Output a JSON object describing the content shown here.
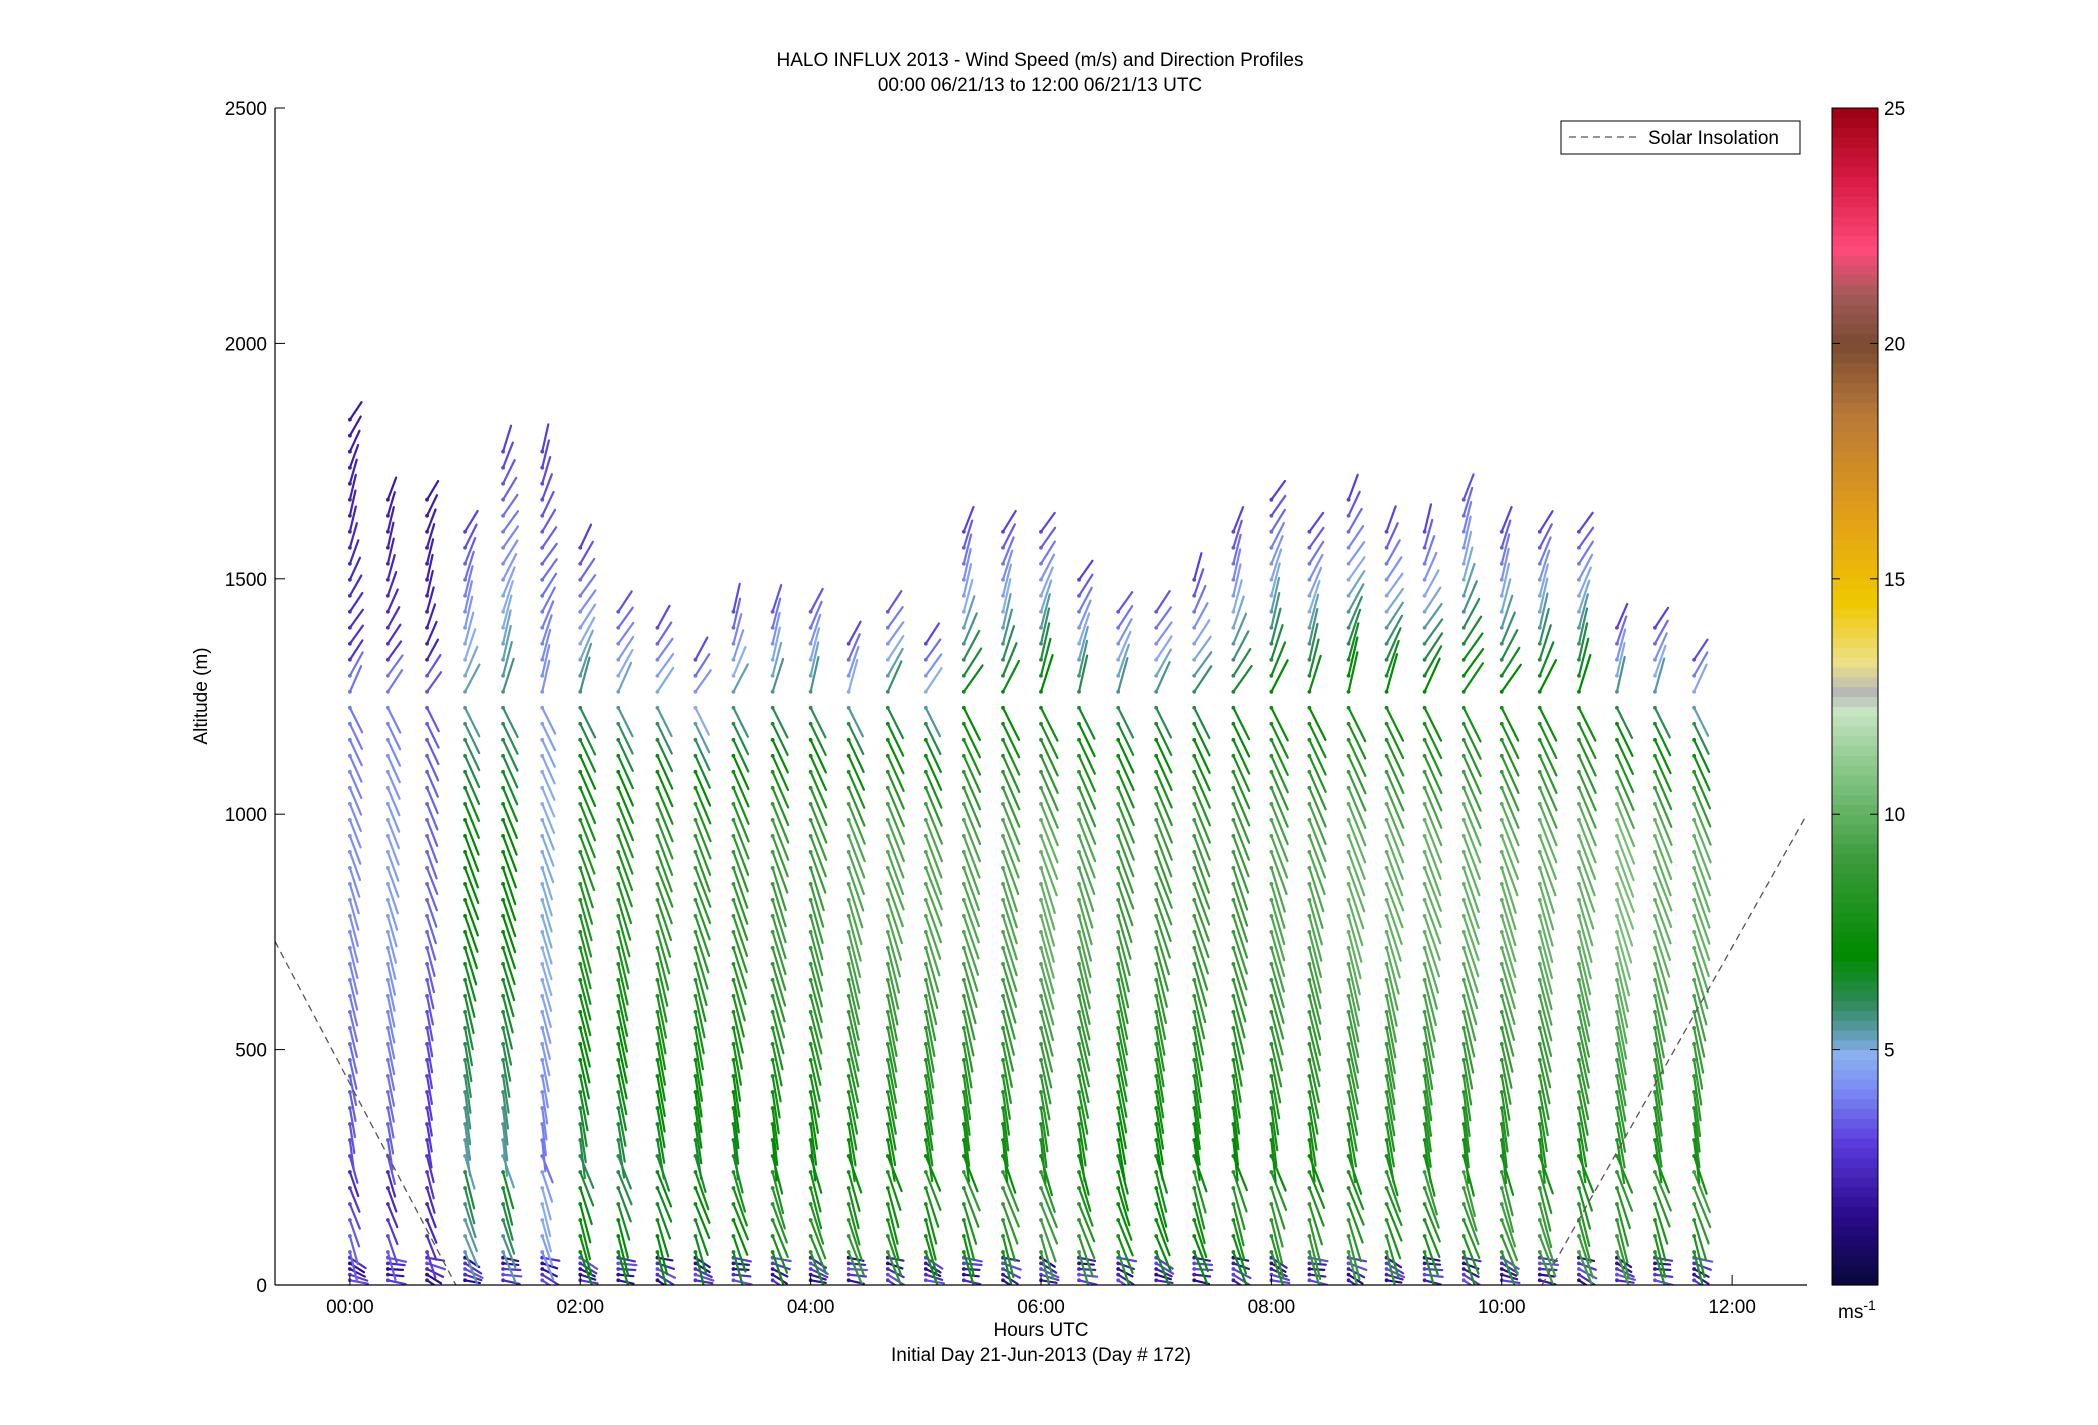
{
  "chart_data": {
    "type": "scatter",
    "title": "HALO INFLUX 2013 - Wind Speed (m/s) and Direction Profiles",
    "subtitle": "00:00 06/21/13 to 12:00 06/21/13  UTC",
    "xlabel": "Hours UTC",
    "xlabel_sub": "Initial Day 21-Jun-2013 (Day # 172)",
    "ylabel": "Altitude (m)",
    "xlim": [
      -0.65,
      12.65
    ],
    "ylim": [
      0,
      2500
    ],
    "x_ticks": [
      0,
      2,
      4,
      6,
      8,
      10,
      12
    ],
    "x_tick_labels": [
      "00:00",
      "02:00",
      "04:00",
      "06:00",
      "08:00",
      "10:00",
      "12:00"
    ],
    "y_ticks": [
      0,
      500,
      1000,
      1500,
      2000,
      2500
    ],
    "y_tick_labels": [
      "0",
      "500",
      "1000",
      "1500",
      "2000",
      "2500"
    ],
    "grid": false,
    "legend": {
      "placement": "top-right",
      "entries": [
        "Solar Insolation"
      ]
    },
    "solar_insolation": {
      "style": "dashed",
      "color": "#555555",
      "segments": [
        [
          [
            -0.65,
            730
          ],
          [
            0.92,
            0
          ]
        ],
        [
          [
            10.35,
            0
          ],
          [
            12.65,
            1000
          ]
        ]
      ]
    },
    "colorbar": {
      "range": [
        0,
        25
      ],
      "ticks": [
        5,
        10,
        15,
        20,
        25
      ],
      "tick_labels": [
        "5",
        "10",
        "15",
        "20",
        "25"
      ],
      "unit_label": "ms",
      "unit_exponent": "-1",
      "stops": [
        {
          "v": 0,
          "c": "#080838"
        },
        {
          "v": 1.5,
          "c": "#2a0a8c"
        },
        {
          "v": 3,
          "c": "#5a3adc"
        },
        {
          "v": 4.2,
          "c": "#7c8ef4"
        },
        {
          "v": 4.9,
          "c": "#8ab0f0"
        },
        {
          "v": 5.4,
          "c": "#5a9aa8"
        },
        {
          "v": 6,
          "c": "#2e8a5a"
        },
        {
          "v": 7,
          "c": "#008a00"
        },
        {
          "v": 9,
          "c": "#3a9a3a"
        },
        {
          "v": 11,
          "c": "#8ac88a"
        },
        {
          "v": 12.2,
          "c": "#c8e4c4"
        },
        {
          "v": 12.6,
          "c": "#b8b8b8"
        },
        {
          "v": 13.2,
          "c": "#ece088"
        },
        {
          "v": 14.5,
          "c": "#f0c800"
        },
        {
          "v": 16.5,
          "c": "#e09c1a"
        },
        {
          "v": 18.5,
          "c": "#b87838"
        },
        {
          "v": 20,
          "c": "#7a4a32"
        },
        {
          "v": 21,
          "c": "#a05a58"
        },
        {
          "v": 22,
          "c": "#ff4a7a"
        },
        {
          "v": 23.5,
          "c": "#d81a44"
        },
        {
          "v": 25,
          "c": "#9a0010"
        }
      ]
    },
    "profile_times": [
      0.0,
      0.33,
      0.67,
      1.0,
      1.33,
      1.67,
      2.0,
      2.33,
      2.67,
      3.0,
      3.33,
      3.67,
      4.0,
      4.33,
      4.67,
      5.0,
      5.33,
      5.67,
      6.0,
      6.33,
      6.67,
      7.0,
      7.33,
      7.67,
      8.0,
      8.33,
      8.67,
      9.0,
      9.33,
      9.67,
      10.0,
      10.33,
      10.67,
      11.0,
      11.33,
      11.67
    ],
    "profile_top_altitudes": [
      1840,
      1670,
      1700,
      1610,
      1780,
      1780,
      1570,
      1460,
      1410,
      1340,
      1450,
      1460,
      1460,
      1370,
      1460,
      1370,
      1610,
      1610,
      1610,
      1500,
      1460,
      1460,
      1500,
      1610,
      1670,
      1610,
      1670,
      1610,
      1610,
      1700,
      1610,
      1610,
      1610,
      1400,
      1400,
      1340
    ],
    "profile_max_speed": [
      4.2,
      4.5,
      3.6,
      7,
      7,
      5,
      8,
      8,
      8.5,
      8.5,
      8.5,
      9,
      9,
      9.5,
      9.5,
      9.5,
      9.5,
      9.5,
      10,
      9.5,
      9,
      9,
      9,
      9,
      9.5,
      9.5,
      10,
      10,
      10,
      10,
      10,
      10,
      10,
      10.5,
      10,
      10
    ],
    "wind_speed_range": [
      0.5,
      10.5
    ],
    "wind_direction_note": "arrows mostly toward the south-east (north-westerly flow) at low levels, veering to south-westerly at upper levels"
  }
}
